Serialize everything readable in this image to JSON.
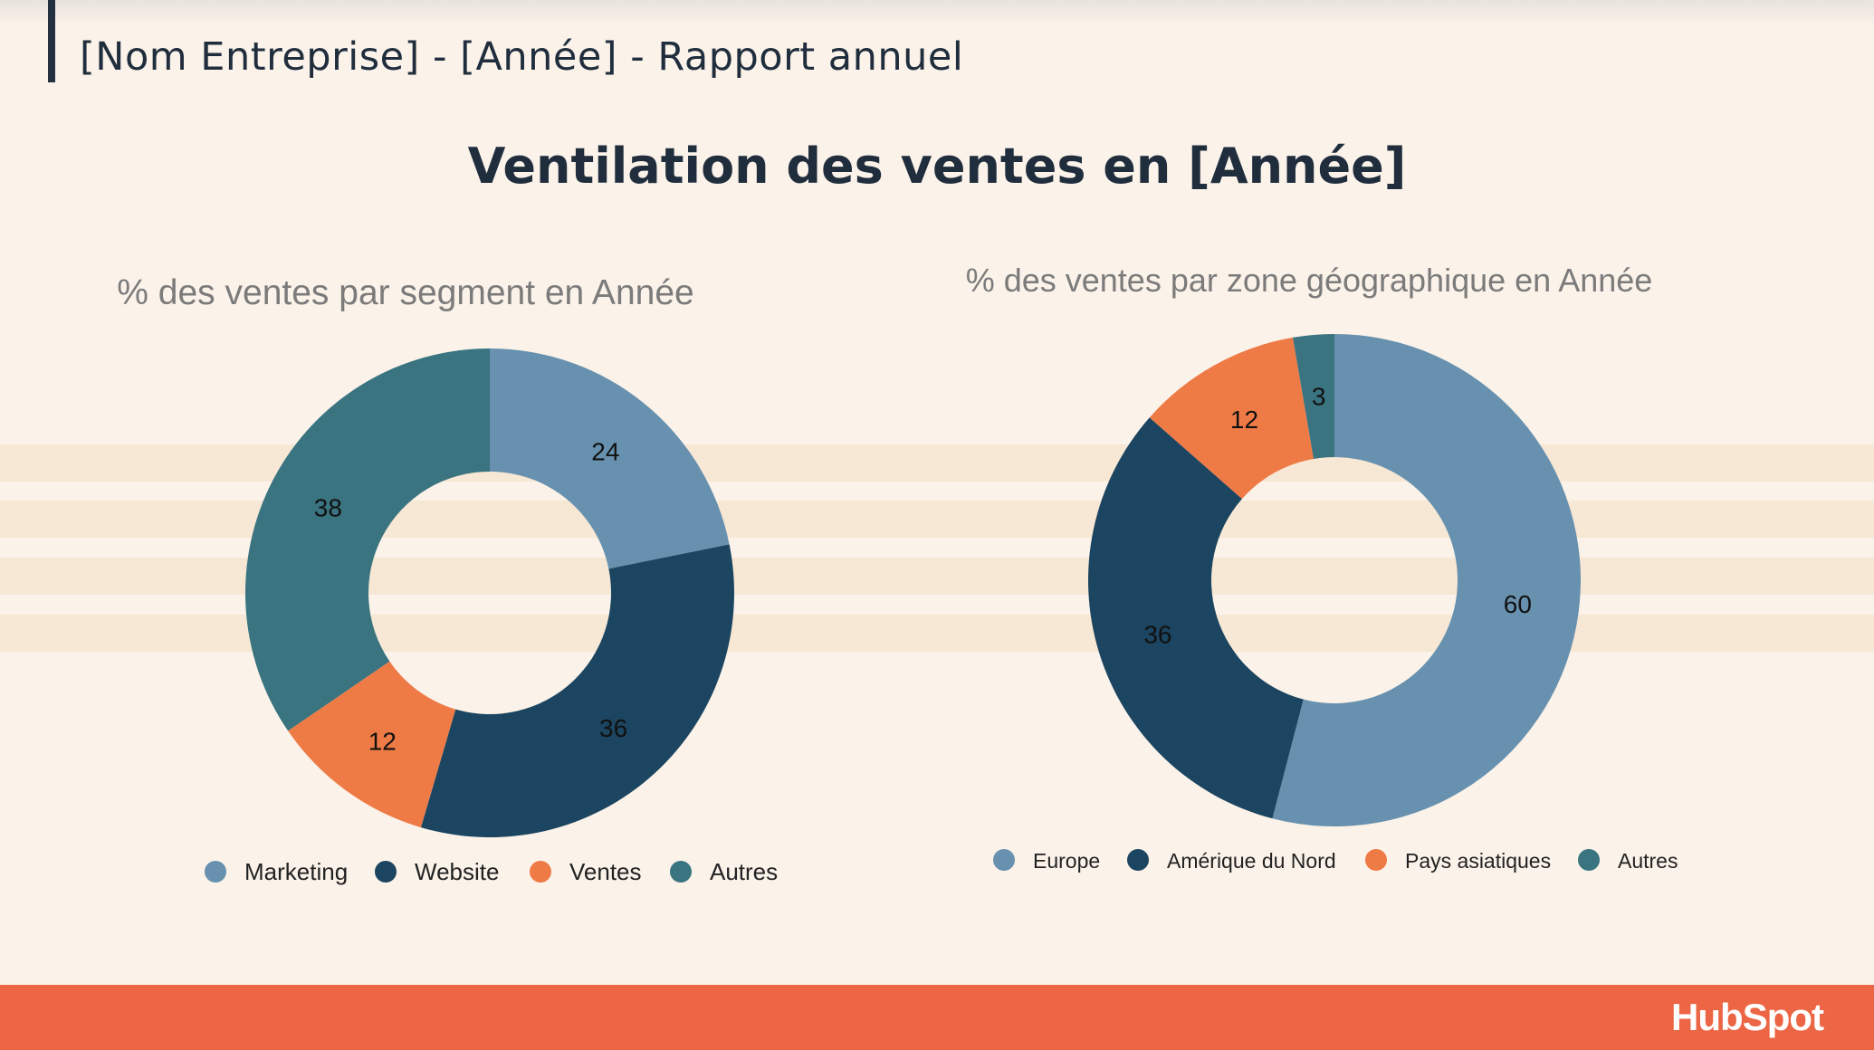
{
  "header": {
    "title": "[Nom Entreprise] - [Année] - Rapport annuel"
  },
  "page": {
    "title": "Ventilation des ventes en [Année]"
  },
  "footer": {
    "logo_text": "HubSpot"
  },
  "colors": {
    "background": "#FBF2E9",
    "stripe": "#F7E7D5",
    "footer": "#EC6645",
    "marketing_europe": "#6791AE",
    "website_north_america": "#1B4560",
    "ventes_asia": "#EE7B46",
    "autres": "#397480"
  },
  "chart_data": [
    {
      "type": "pie",
      "variant": "donut",
      "title": "% des ventes par segment en Année",
      "categories": [
        "Marketing",
        "Website",
        "Ventes",
        "Autres"
      ],
      "values": [
        24,
        36,
        12,
        38
      ],
      "colors": [
        "#6791AE",
        "#1B4560",
        "#EE7B46",
        "#397480"
      ],
      "legend": "bottom"
    },
    {
      "type": "pie",
      "variant": "donut",
      "title": "% des ventes par zone géographique en Année",
      "categories": [
        "Europe",
        "Amérique du Nord",
        "Pays asiatiques",
        "Autres"
      ],
      "values": [
        60,
        36,
        12,
        3
      ],
      "colors": [
        "#6791AE",
        "#1B4560",
        "#EE7B46",
        "#397480"
      ],
      "legend": "bottom"
    }
  ]
}
